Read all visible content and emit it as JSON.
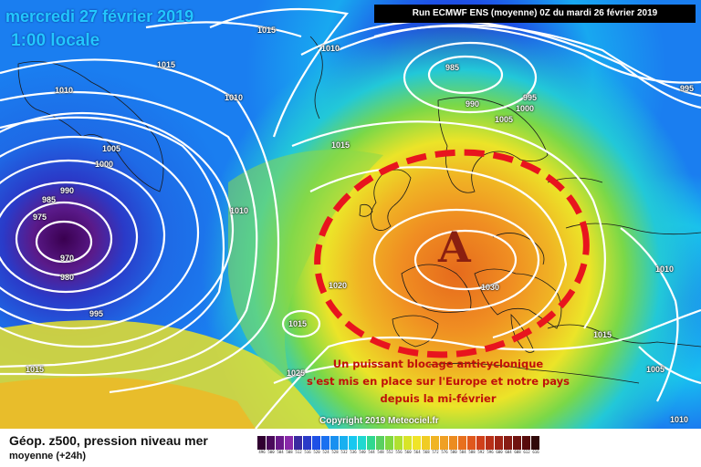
{
  "header": {
    "date": "mercredi 27 février 2019",
    "hour": "1:00 locale",
    "run": "Run ECMWF ENS (moyenne) 0Z du mardi 26 février 2019"
  },
  "map": {
    "high_marker": "A",
    "isobar_labels": [
      "1015",
      "1010",
      "1015",
      "1010",
      "1010",
      "985",
      "995",
      "995",
      "990",
      "1000",
      "1005",
      "1005",
      "1000",
      "1015",
      "990",
      "985",
      "975",
      "970",
      "980",
      "995",
      "1010",
      "1020",
      "1030",
      "1015",
      "1025",
      "1015",
      "1010",
      "1015",
      "1005",
      "1010"
    ],
    "colors": {
      "deep_low": "#4a0a60",
      "blue": "#1e50e6",
      "cyan": "#18c8f0",
      "green": "#5ad060",
      "yellow": "#f0e428",
      "orange": "#f0a024",
      "deep_orange": "#e8701e",
      "blocking_ring": "#e8141e",
      "isobar": "#ffffff"
    }
  },
  "annotation": {
    "lines": [
      "Un puissant blocage anticyclonique",
      "s'est mis en place sur l'Europe et notre pays",
      "depuis la mi-février"
    ]
  },
  "copyright": "Copyright 2019 Meteociel.fr",
  "legend": {
    "title": "Géop. z500, pression niveau mer",
    "subtitle": "moyenne   (+24h)",
    "scale_values": [
      "496",
      "500",
      "504",
      "508",
      "512",
      "516",
      "520",
      "524",
      "528",
      "532",
      "536",
      "540",
      "544",
      "548",
      "552",
      "556",
      "560",
      "564",
      "568",
      "572",
      "576",
      "580",
      "584",
      "588",
      "592",
      "596",
      "600",
      "604",
      "608",
      "612",
      "616"
    ],
    "scale_colors": [
      "#300030",
      "#4a0a5a",
      "#6a1a8a",
      "#8a2aaa",
      "#3a2aa0",
      "#2a3ac8",
      "#1e50e6",
      "#1a70f0",
      "#1890f0",
      "#18b0f0",
      "#18c8f0",
      "#20d8d0",
      "#30d890",
      "#5ad060",
      "#80d840",
      "#b0e030",
      "#d8e428",
      "#f0e428",
      "#f0cc24",
      "#f0b424",
      "#f0a024",
      "#ec8c20",
      "#e8701e",
      "#e0581c",
      "#d0401a",
      "#b83018",
      "#a02416",
      "#881c14",
      "#701410",
      "#580c0c",
      "#300808"
    ]
  }
}
